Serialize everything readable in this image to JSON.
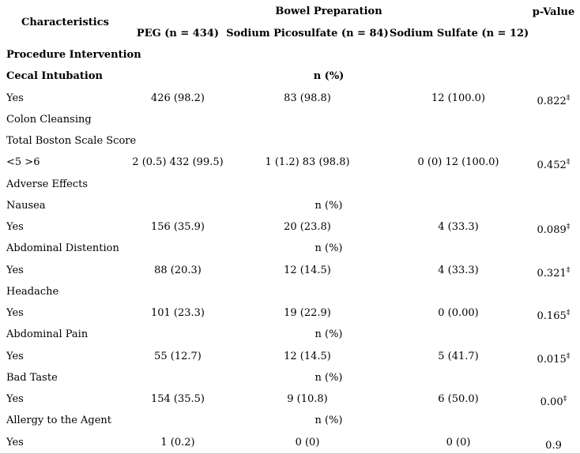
{
  "table": {
    "header": {
      "characteristics": "Characteristics",
      "group": "Bowel Preparation",
      "p_value": "p-Value",
      "columns": [
        "PEG (n = 434)",
        "Sodium Picosulfate (n = 84)",
        "Sodium Sulfate (n = 12)"
      ]
    },
    "rows": [
      {
        "label": "Procedure Intervention"
      },
      {
        "label": "Cecal Intubation",
        "mid": "n (%)"
      },
      {
        "label": "Yes",
        "peg": "426 (98.2)",
        "pico": "83 (98.8)",
        "sulfate": "12 (100.0)",
        "p": "0.822",
        "dagger": "‡"
      },
      {
        "label": "Colon Cleansing"
      },
      {
        "label": "Total Boston Scale Score"
      },
      {
        "label": "<5 >6",
        "peg": "2 (0.5) 432 (99.5)",
        "pico": "1 (1.2) 83 (98.8)",
        "sulfate": "0 (0) 12 (100.0)",
        "p": "0.452",
        "dagger": "‡"
      },
      {
        "label": "Adverse Effects"
      },
      {
        "label": "Nausea",
        "mid": "n (%)"
      },
      {
        "label": "Yes",
        "peg": "156 (35.9)",
        "pico": "20 (23.8)",
        "sulfate": "4 (33.3)",
        "p": "0.089",
        "dagger": "‡"
      },
      {
        "label": "Abdominal Distention",
        "mid": "n (%)"
      },
      {
        "label": "Yes",
        "peg": "88 (20.3)",
        "pico": "12 (14.5)",
        "sulfate": "4 (33.3)",
        "p": "0.321",
        "dagger": "‡"
      },
      {
        "label": "Headache"
      },
      {
        "label": "Yes",
        "peg": "101 (23.3)",
        "pico": "19 (22.9)",
        "sulfate": "0 (0.00)",
        "p": "0.165",
        "dagger": "‡"
      },
      {
        "label": "Abdominal Pain",
        "mid": "n (%)"
      },
      {
        "label": "Yes",
        "peg": "55 (12.7)",
        "pico": "12 (14.5)",
        "sulfate": "5 (41.7)",
        "p": "0.015",
        "dagger": "‡"
      },
      {
        "label": "Bad Taste",
        "mid": "n (%)"
      },
      {
        "label": "Yes",
        "peg": "154 (35.5)",
        "pico": "9 (10.8)",
        "sulfate": "6 (50.0)",
        "p": "0.00",
        "dagger": "‡"
      },
      {
        "label": "Allergy to the Agent",
        "mid": "n (%)"
      },
      {
        "label": "Yes",
        "peg": "1 (0.2)",
        "pico": "0 (0)",
        "sulfate": "0 (0)",
        "p": "0.9",
        "dagger": ""
      }
    ]
  }
}
